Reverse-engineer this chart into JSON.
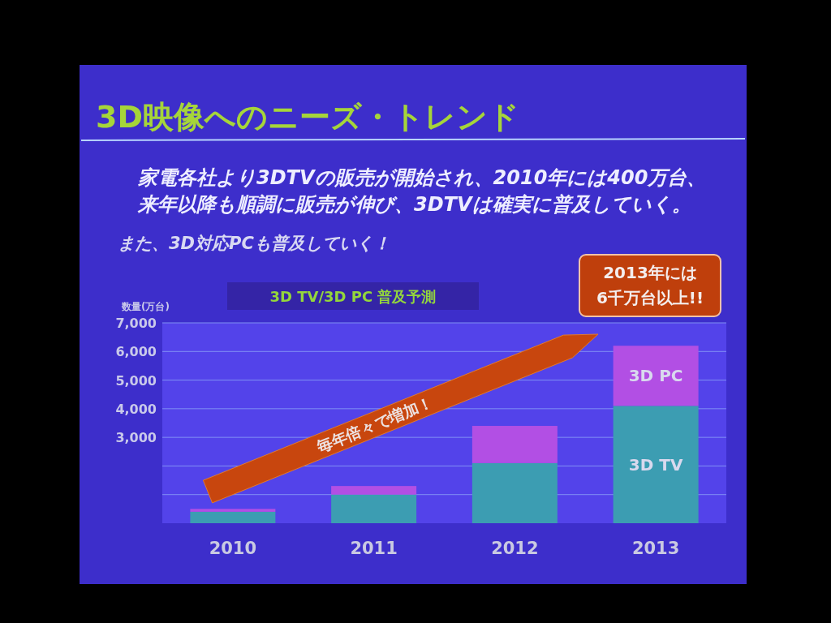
{
  "chart_data": {
    "type": "bar",
    "stacked": true,
    "title": "3D映像へのニーズ・トレンド",
    "subtitle": "家電各社より3DTVの販売が開始され、2010年には400万台、来年以降も順調に販売が伸び、3DTVは確実に普及していく。",
    "ylabel": "数量(万台)",
    "categories": [
      "2010",
      "2011",
      "2012",
      "2013"
    ],
    "series": [
      {
        "name": "3D TV",
        "color": "#3c9db2",
        "values": [
          400,
          1000,
          2100,
          4100
        ]
      },
      {
        "name": "3D PC",
        "color": "#b24fe4",
        "values": [
          100,
          300,
          1300,
          2100
        ]
      }
    ],
    "ylim": [
      0,
      7000
    ],
    "yticks": [
      {
        "value": 1000,
        "label": null
      },
      {
        "value": 2000,
        "label": null
      },
      {
        "value": 3000,
        "label": "3,000"
      },
      {
        "value": 4000,
        "label": "4,000"
      },
      {
        "value": 5000,
        "label": "5,000"
      },
      {
        "value": 6000,
        "label": "6,000"
      },
      {
        "value": 7000,
        "label": "7,000"
      }
    ],
    "grid": "y",
    "annotations": [
      "また、3D対応PCも普及していく！",
      "3D TV/3D PC 普及予測",
      "毎年倍々で増加！",
      "2013年には\n6千万台以上!!"
    ]
  }
}
